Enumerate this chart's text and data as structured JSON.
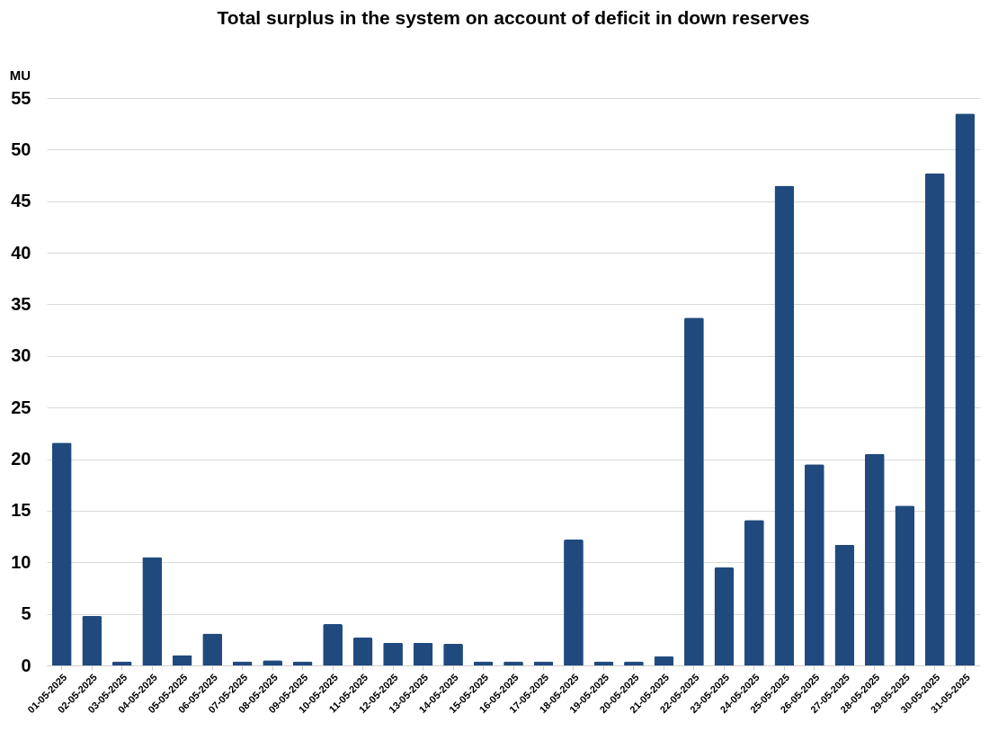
{
  "chart_data": {
    "type": "bar",
    "title": "Total surplus in the system on account of deficit in down reserves",
    "ylabel": "MU",
    "categories": [
      "01-05-2025",
      "02-05-2025",
      "03-05-2025",
      "04-05-2025",
      "05-05-2025",
      "06-05-2025",
      "07-05-2025",
      "08-05-2025",
      "09-05-2025",
      "10-05-2025",
      "11-05-2025",
      "12-05-2025",
      "13-05-2025",
      "14-05-2025",
      "15-05-2025",
      "16-05-2025",
      "17-05-2025",
      "18-05-2025",
      "19-05-2025",
      "20-05-2025",
      "21-05-2025",
      "22-05-2025",
      "23-05-2025",
      "24-05-2025",
      "25-05-2025",
      "26-05-2025",
      "27-05-2025",
      "28-05-2025",
      "29-05-2025",
      "30-05-2025",
      "31-05-2025"
    ],
    "values": [
      21.6,
      4.8,
      0.4,
      10.5,
      1.0,
      3.1,
      0.4,
      0.5,
      0.4,
      4.0,
      2.7,
      2.2,
      2.2,
      2.1,
      0.4,
      0.4,
      0.4,
      12.2,
      0.4,
      0.4,
      0.9,
      33.7,
      9.5,
      14.1,
      46.5,
      19.5,
      11.7,
      20.5,
      15.5,
      47.7,
      53.5
    ],
    "color": "#204a7e",
    "ylim": [
      0,
      55
    ],
    "yticks": [
      0,
      5,
      10,
      15,
      20,
      25,
      30,
      35,
      40,
      45,
      50,
      55
    ],
    "grid": "y"
  }
}
